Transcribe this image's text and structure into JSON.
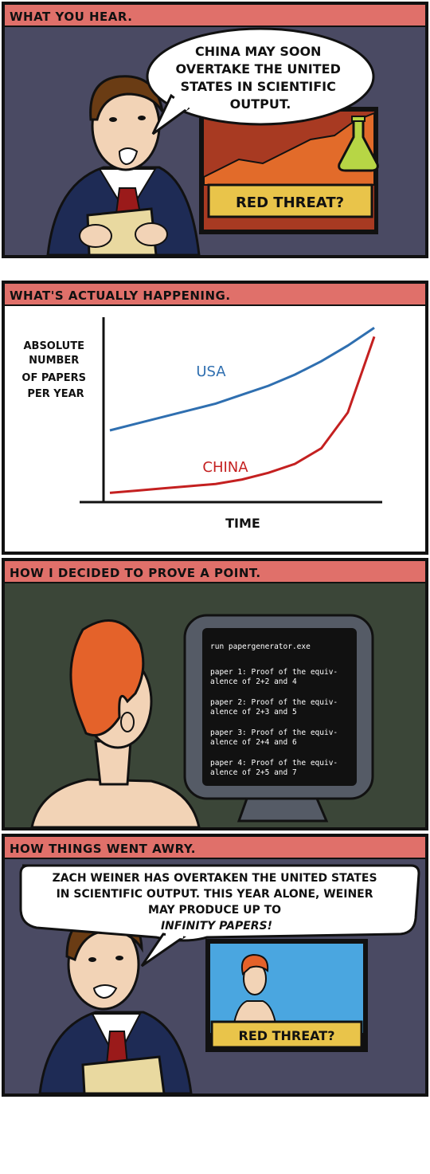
{
  "panels": [
    {
      "caption": "WHAT YOU HEAR.",
      "speech": [
        "CHINA MAY SOON",
        "OVERTAKE THE UNITED",
        "STATES IN SCIENTIFIC",
        "OUTPUT."
      ],
      "screen_banner": "RED THREAT?"
    },
    {
      "caption": "WHAT'S ACTUALLY HAPPENING.",
      "chart": {
        "ylabel": [
          "ABSOLUTE",
          "NUMBER",
          "OF PAPERS",
          "PER YEAR"
        ],
        "xlabel": "TIME",
        "series_usa": "USA",
        "series_china": "CHINA"
      }
    },
    {
      "caption": "HOW I DECIDED TO PROVE A POINT.",
      "terminal": {
        "command": "run papergenerator.exe",
        "papers": [
          [
            "paper 1: Proof of the equiv-",
            "alence of 2+2 and 4"
          ],
          [
            "paper 2: Proof of the equiv-",
            "alence of 2+3 and 5"
          ],
          [
            "paper 3: Proof of the equiv-",
            "alence of 2+4 and 6"
          ],
          [
            "paper 4: Proof of the equiv-",
            "alence of 2+5 and 7"
          ]
        ]
      }
    },
    {
      "caption": "HOW THINGS WENT AWRY.",
      "speech": [
        "ZACH WEINER HAS OVERTAKEN THE UNITED STATES",
        "IN SCIENTIFIC OUTPUT. THIS YEAR ALONE, WEINER",
        "MAY PRODUCE UP TO",
        "INFINITY PAPERS!"
      ],
      "screen_banner": "RED THREAT?"
    }
  ],
  "chart_data": {
    "type": "line",
    "xlabel": "TIME",
    "ylabel": "ABSOLUTE NUMBER OF PAPERS PER YEAR",
    "series": [
      {
        "name": "USA",
        "color": "#2f6fb0",
        "x": [
          0,
          1,
          2,
          3,
          4,
          5,
          6,
          7,
          8,
          9,
          10
        ],
        "values": [
          30,
          33,
          36,
          39,
          42,
          46,
          50,
          55,
          61,
          68,
          76
        ]
      },
      {
        "name": "CHINA",
        "color": "#c42020",
        "x": [
          0,
          1,
          2,
          3,
          4,
          5,
          6,
          7,
          8,
          9,
          10
        ],
        "values": [
          2,
          3,
          4,
          5,
          6,
          8,
          11,
          15,
          22,
          38,
          72
        ]
      }
    ],
    "grid": false
  },
  "colors": {
    "caption_bar": "#e0706a",
    "panel_bg": "#4a4a63",
    "panel3_bg": "#3b4638",
    "banner": "#e9c44a",
    "backdrop_red": "#a83a22",
    "backdrop_orange": "#e26b2a",
    "sky_blue": "#4aa6e0",
    "suit": "#1e2b55",
    "tie": "#9a1a1a",
    "hair_brown": "#6a3c14",
    "hair_orange": "#e4622a",
    "skin": "#f2d3b6",
    "flask": "#b7d645"
  }
}
